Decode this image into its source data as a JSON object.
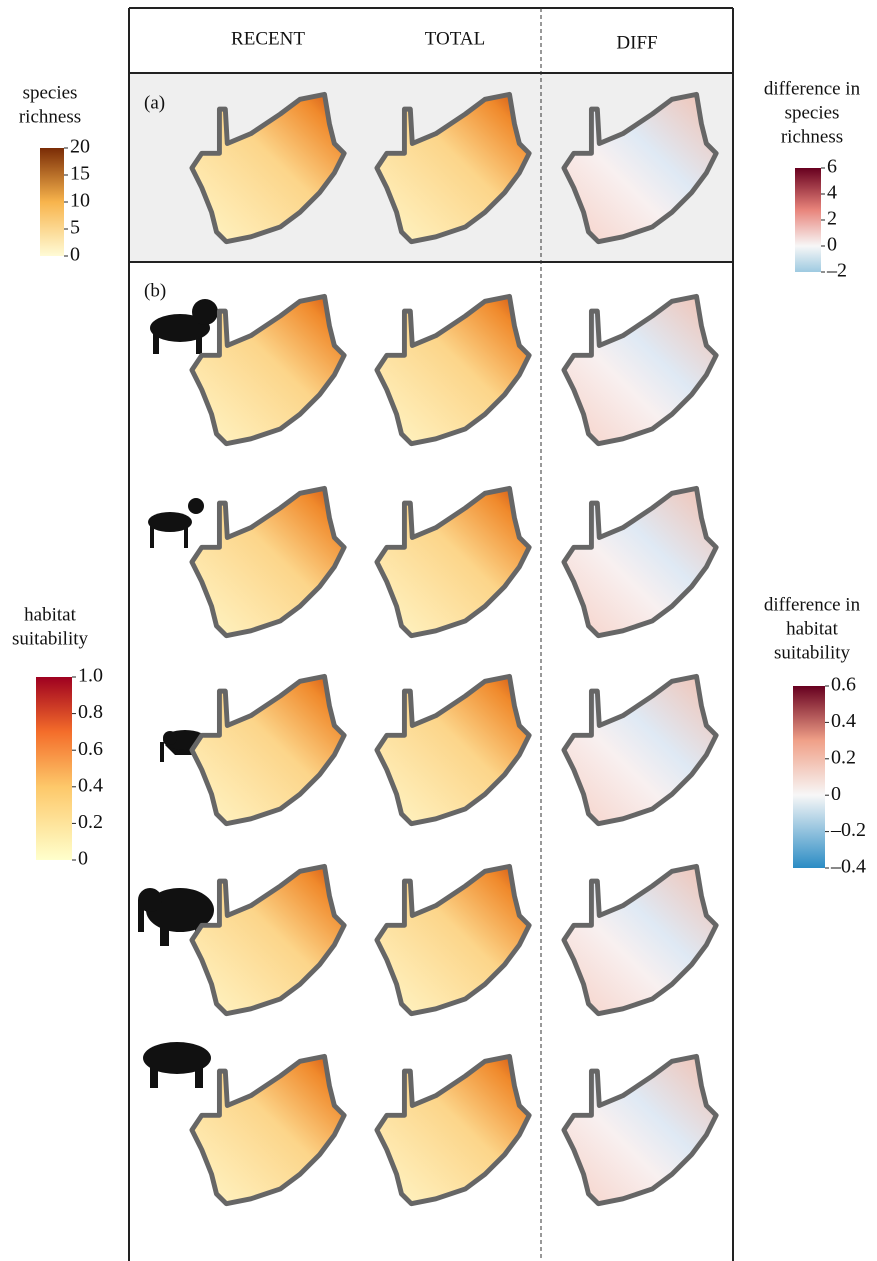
{
  "columns": [
    "RECENT",
    "TOTAL",
    "DIFF"
  ],
  "panels": [
    "(a)",
    "(b)"
  ],
  "legends": {
    "species_richness": {
      "title": [
        "species",
        "richness"
      ],
      "ticks": [
        "20",
        "15",
        "10",
        "5",
        "0"
      ]
    },
    "diff_species_richness": {
      "title": [
        "difference in",
        "species",
        "richness"
      ],
      "ticks": [
        "6",
        "4",
        "2",
        "0",
        "–2"
      ]
    },
    "habitat_suitability": {
      "title": [
        "habitat",
        "suitability"
      ],
      "ticks": [
        "1.0",
        "0.8",
        "0.6",
        "0.4",
        "0.2",
        "0"
      ]
    },
    "diff_habitat_suitability": {
      "title": [
        "difference in",
        "habitat",
        "suitability"
      ],
      "ticks": [
        "0.6",
        "0.4",
        "0.2",
        "0",
        "–0.2",
        "–0.4"
      ]
    }
  }
}
